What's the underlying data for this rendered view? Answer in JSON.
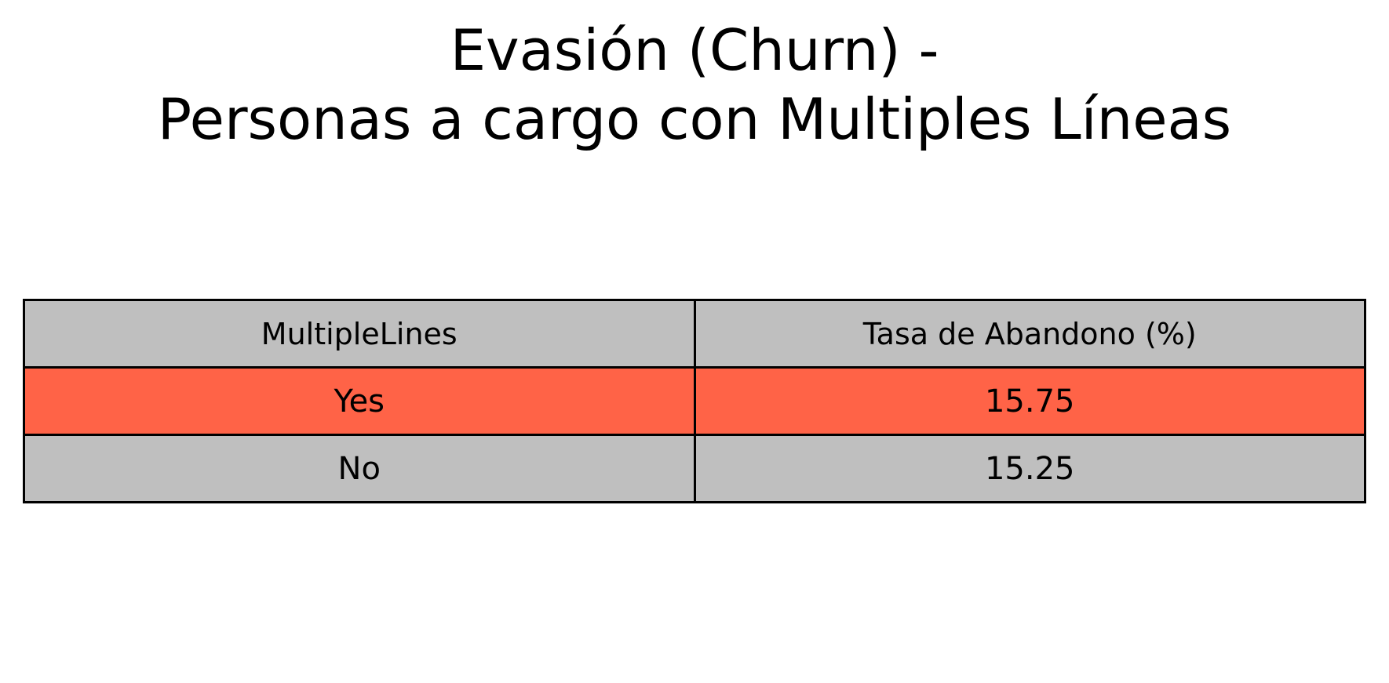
{
  "chart_data": {
    "type": "table",
    "title_lines": [
      "Evasión (Churn) -",
      "Personas a cargo con Multiples Líneas"
    ],
    "columns": [
      "MultipleLines",
      "Tasa de Abandono (%)"
    ],
    "rows": [
      {
        "cells": [
          "Yes",
          "15.75"
        ],
        "fill": "#ff6347"
      },
      {
        "cells": [
          "No",
          "15.25"
        ],
        "fill": "#bfbfbf"
      }
    ],
    "header_fill": "#bfbfbf",
    "border_color": "#000000"
  }
}
